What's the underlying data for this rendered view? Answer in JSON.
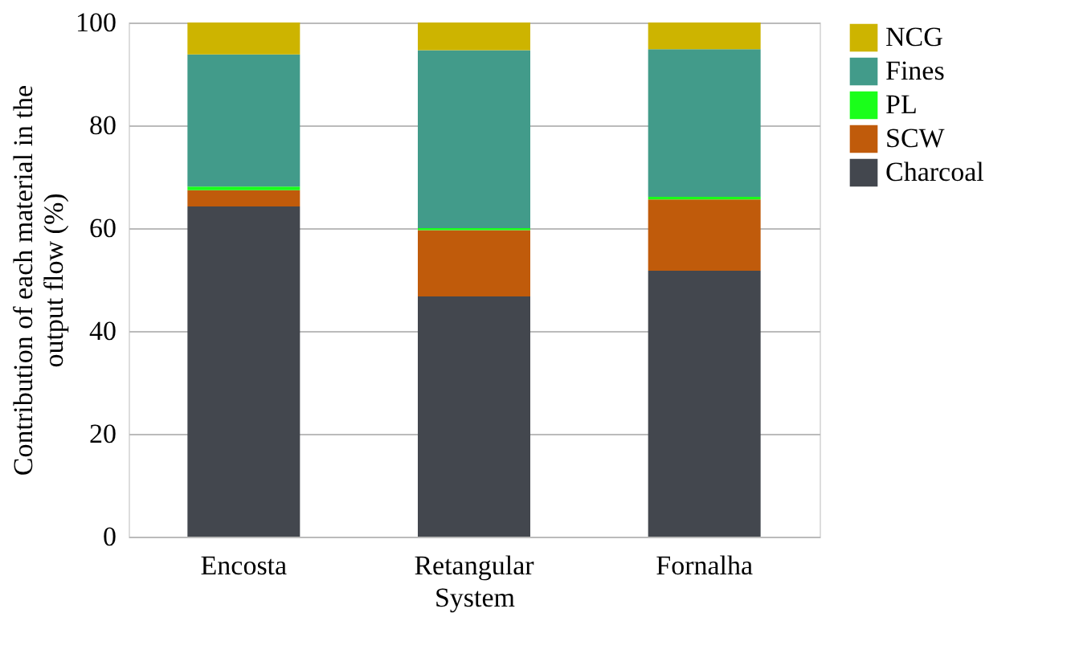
{
  "chart_data": {
    "type": "bar",
    "stacked": true,
    "xlabel": "System",
    "ylabel": "Contribution of each material in the output flow (%)",
    "categories": [
      "Encosta",
      "Retangular",
      "Fornalha"
    ],
    "series": [
      {
        "name": "Charcoal",
        "color": "#43474e",
        "values": [
          64.2,
          46.7,
          51.7
        ]
      },
      {
        "name": "SCW",
        "color": "#c05b0b",
        "values": [
          3.2,
          12.9,
          13.9
        ]
      },
      {
        "name": "PL",
        "color": "#1aff1a",
        "values": [
          0.7,
          0.4,
          0.5
        ]
      },
      {
        "name": "Fines",
        "color": "#429b8a",
        "values": [
          25.7,
          34.6,
          28.7
        ]
      },
      {
        "name": "NCG",
        "color": "#cdb400",
        "values": [
          6.2,
          5.4,
          5.2
        ]
      }
    ],
    "ylim": [
      0,
      100
    ],
    "yticks": [
      0,
      20,
      40,
      60,
      80,
      100
    ],
    "grid": "y",
    "legend": "right"
  }
}
